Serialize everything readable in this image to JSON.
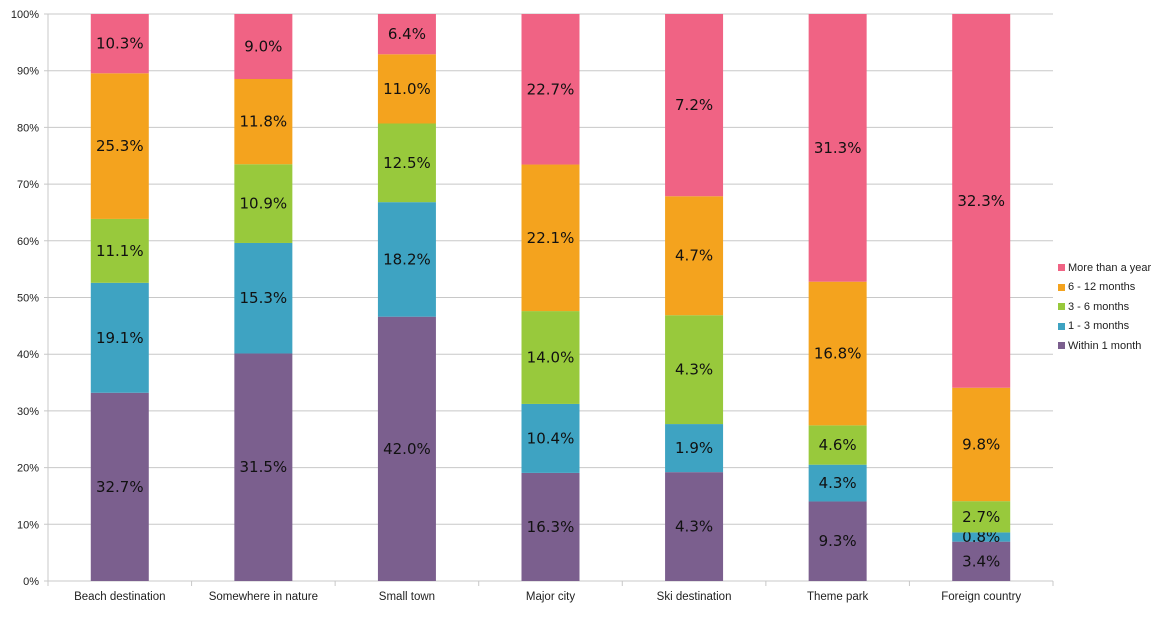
{
  "chart_data": {
    "type": "bar",
    "stacked": "percent",
    "categories": [
      "Beach destination",
      "Somewhere in nature",
      "Small town",
      "Major city",
      "Ski destination",
      "Theme park",
      "Foreign country"
    ],
    "y_ticks": [
      "0%",
      "10%",
      "20%",
      "30%",
      "40%",
      "50%",
      "60%",
      "70%",
      "80%",
      "90%",
      "100%"
    ],
    "ylim": [
      0,
      100
    ],
    "grid": true,
    "legend_position": "right",
    "series": [
      {
        "name": "Within 1 month",
        "color": "#7b5f8e",
        "values": [
          32.7,
          31.5,
          42.0,
          16.3,
          4.3,
          9.3,
          3.4
        ],
        "labels": [
          "32.7%",
          "31.5%",
          "42.0%",
          "16.3%",
          "4.3%",
          "9.3%",
          "3.4%"
        ]
      },
      {
        "name": "1 - 3 months",
        "color": "#3ea3c2",
        "values": [
          19.1,
          15.3,
          18.2,
          10.4,
          1.9,
          4.3,
          0.8
        ],
        "labels": [
          "19.1%",
          "15.3%",
          "18.2%",
          "10.4%",
          "1.9%",
          "4.3%",
          "0.8%"
        ]
      },
      {
        "name": "3 - 6 months",
        "color": "#98c93c",
        "values": [
          11.1,
          10.9,
          12.5,
          14.0,
          4.3,
          4.6,
          2.7
        ],
        "labels": [
          "11.1%",
          "10.9%",
          "12.5%",
          "14.0%",
          "4.3%",
          "4.6%",
          "2.7%"
        ]
      },
      {
        "name": "6 - 12 months",
        "color": "#f4a31e",
        "values": [
          25.3,
          11.8,
          11.0,
          22.1,
          4.7,
          16.8,
          9.8
        ],
        "labels": [
          "25.3%",
          "11.8%",
          "11.0%",
          "22.1%",
          "4.7%",
          "16.8%",
          "9.8%"
        ]
      },
      {
        "name": "More than a year",
        "color": "#f06384",
        "values": [
          10.3,
          9.0,
          6.4,
          22.7,
          7.2,
          31.3,
          32.3
        ],
        "labels": [
          "10.3%",
          "9.0%",
          "6.4%",
          "22.7%",
          "7.2%",
          "31.3%",
          "32.3%"
        ]
      }
    ],
    "legend_order": [
      "More than a year",
      "6 - 12 months",
      "3 - 6 months",
      "1 - 3 months",
      "Within 1 month"
    ]
  }
}
